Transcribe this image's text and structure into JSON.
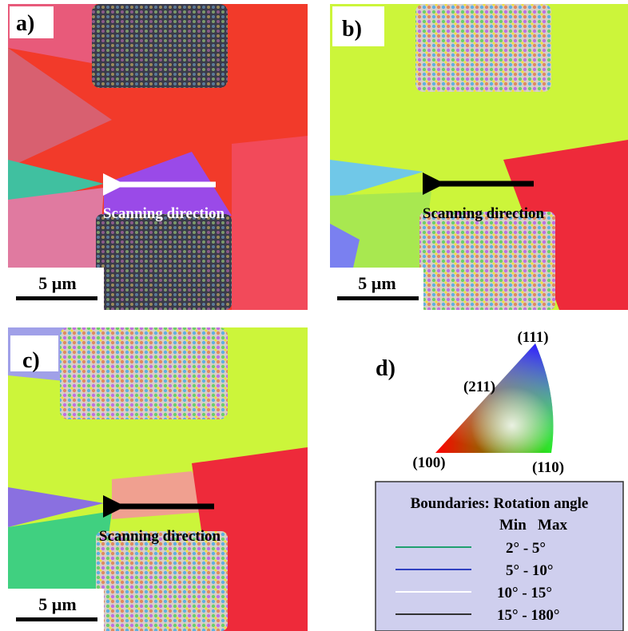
{
  "panels": [
    {
      "label": "a)",
      "direction": "Scanning direction",
      "scale": "5 µm"
    },
    {
      "label": "b)",
      "direction": "Scanning direction",
      "scale": "5 µm"
    },
    {
      "label": "c)",
      "direction": "Scanning direction",
      "scale": "5 µm"
    }
  ],
  "ipf": {
    "label": "d)",
    "poles": [
      "(111)",
      "(211)",
      "(100)",
      "(110)"
    ]
  },
  "legend": {
    "title": "Boundaries: Rotation angle",
    "header": "Min   Max",
    "rows": [
      "2° - 5°",
      "5° - 10°",
      "10° - 15°",
      "15° - 180°"
    ]
  }
}
